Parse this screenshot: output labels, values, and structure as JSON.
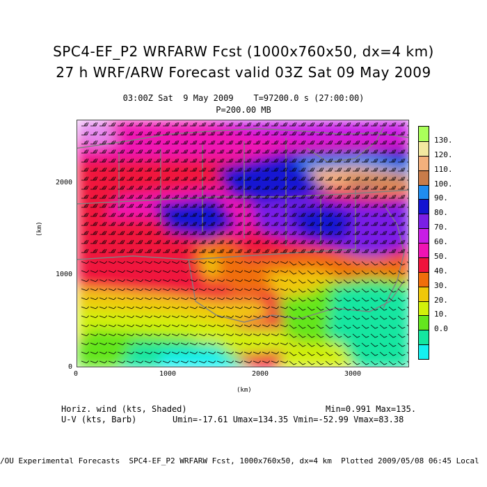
{
  "title_line1": "SPC4-EF_P2 WRFARW Fcst (1000x760x50, dx=4 km)",
  "title_line2": "27 h WRF/ARW Forecast valid 03Z Sat 09 May 2009",
  "subtitle": "03:00Z Sat  9 May 2009    T=97200.0 s (27:00:00)",
  "level": "P=200.00 MB",
  "axes": {
    "x_label": "(km)",
    "y_label": "(km)",
    "x_ticks": [
      "0",
      "1000",
      "2000",
      "3000"
    ],
    "y_ticks": [
      "0",
      "1000",
      "2000"
    ]
  },
  "colorbar": {
    "labels": [
      "130.",
      "120.",
      "110.",
      "100.",
      "90.",
      "80.",
      "70.",
      "60.",
      "50.",
      "40.",
      "30.",
      "20.",
      "10.",
      "0.0"
    ],
    "colors": [
      "#aaff5a",
      "#f2e8a0",
      "#f3b07c",
      "#c87c4a",
      "#1f8cf0",
      "#1414d2",
      "#7a1ee6",
      "#c81ee6",
      "#f014b4",
      "#f0143c",
      "#f06e0a",
      "#f0c80a",
      "#d2f00a",
      "#64e61e",
      "#14e6a0",
      "#14f0f0"
    ]
  },
  "info": {
    "var1_name": "Horiz. wind (kts, Shaded)",
    "var1_stats": "Min=0.991 Max=135.",
    "var2_name": "U-V (kts, Barb)",
    "var2_stats": "Umin=-17.61 Umax=134.35 Vmin=-52.99 Vmax=83.38"
  },
  "footer": "/OU Experimental Forecasts  SPC4-EF_P2 WRFARW Fcst, 1000x760x50, dx=4 km  Plotted 2009/05/08 06:45 Local"
}
